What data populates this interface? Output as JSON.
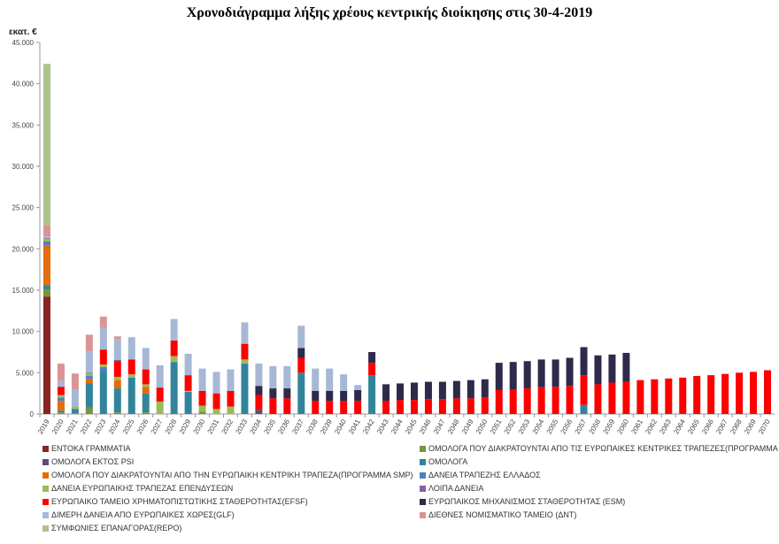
{
  "chart_data": {
    "type": "bar",
    "stacked": true,
    "title": "Χρονοδιάγραμμα λήξης χρέους κεντρικής διοίκησης στις 30-4-2019",
    "ylabel": "εκατ. €",
    "xlabel": "",
    "ylim": [
      0,
      45000
    ],
    "yticks": [
      "0",
      "5.000",
      "10.000",
      "15.000",
      "20.000",
      "25.000",
      "30.000",
      "35.000",
      "40.000",
      "45.000"
    ],
    "ytick_values": [
      0,
      5000,
      10000,
      15000,
      20000,
      25000,
      30000,
      35000,
      40000,
      45000
    ],
    "grid": false,
    "legend_position": "bottom",
    "year_start": 2019,
    "year_end": 2070,
    "series": [
      {
        "name": "ΕΝΤΟΚΑ ΓΡΑΜΜΑΤΙΑ",
        "color": "#8b2323",
        "values": {
          "2019": 14200
        }
      },
      {
        "name": "ΟΜΟΛΟΓΑ ΠΟΥ ΔΙΑΚΡΑΤΟΥΝΤΑΙ ΑΠΟ ΤΙΣ ΕΥΡΩΠΑΙΚΕΣ ΚΕΝΤΡΙΚΕΣ ΤΡΑΠΕΖΕΣ(ΠΡΟΓΡΑΜΜΑ ANFA)",
        "color": "#77933c",
        "values": {
          "2019": 900,
          "2020": 200,
          "2021": 100,
          "2022": 800,
          "2024": 200,
          "2026": 200,
          "2030": 300
        }
      },
      {
        "name": "ΟΜΟΛΟΓΑ ΕΚΤΟΣ PSI",
        "color": "#604a7b",
        "values": {
          "2034": 500
        }
      },
      {
        "name": "ΟΜΟΛΟΓΑ",
        "color": "#31849b",
        "values": {
          "2019": 500,
          "2020": 200,
          "2021": 500,
          "2022": 2900,
          "2023": 5200,
          "2024": 2900,
          "2025": 4400,
          "2026": 2300,
          "2028": 6300,
          "2029": 2700,
          "2033": 6100,
          "2037": 5000,
          "2042": 4700,
          "2057": 1100
        }
      },
      {
        "name": "ΟΜΟΛΟΓΑ ΠΟΥ ΔΙΑΚΡΑΤΟΥΝΤΑΙ ΑΠΟ ΤΗΝ ΕΥΡΩΠΑΙΚΗ ΚΕΝΤΡΙΚΗ ΤΡΑΠΕΖΑ(ΠΡΟΓΡΑΜΜΑ SMP)",
        "color": "#e46c0a",
        "values": {
          "2019": 4800,
          "2020": 1200,
          "2022": 500,
          "2024": 1000,
          "2026": 800
        }
      },
      {
        "name": "ΔΑΝΕΙΑ ΤΡΑΠΕΖΗΣ ΕΛΛΑΔΟΣ",
        "color": "#4f81bd",
        "values": {
          "2019": 500,
          "2020": 400,
          "2022": 400,
          "2023": 500
        }
      },
      {
        "name": "ΔΑΝΕΙΑ ΕΥΡΩΠΑΙΚΗΣ ΤΡΑΠΕΖΑΣ ΕΠΕΝΔΥΣΕΩΝ",
        "color": "#9bbb59",
        "values": {
          "2019": 300,
          "2020": 300,
          "2021": 300,
          "2022": 300,
          "2023": 300,
          "2024": 400,
          "2025": 400,
          "2026": 300,
          "2027": 1500,
          "2028": 700,
          "2029": 100,
          "2030": 700,
          "2031": 600,
          "2032": 900,
          "2033": 500
        }
      },
      {
        "name": "ΛΟΙΠΑ ΔΑΝΕΙΑ",
        "color": "#8064a2",
        "values": {
          "2019": 100,
          "2022": 100
        }
      },
      {
        "name": "ΕΥΡΩΠΑΙΚΟ ΤΑΜΕΙΟ ΧΡΗΜΑΤΟΠΙΣΤΩΤΙΚΗΣ ΣΤΑΘΕΡΟΤΗΤΑΣ(EFSF)",
        "color": "#ff0000",
        "values": {
          "2020": 1000,
          "2023": 1800,
          "2024": 1900,
          "2025": 1800,
          "2026": 1800,
          "2027": 1700,
          "2028": 1900,
          "2029": 1900,
          "2030": 1800,
          "2031": 1900,
          "2032": 1900,
          "2033": 1900,
          "2034": 1800,
          "2035": 1900,
          "2036": 1900,
          "2037": 1800,
          "2038": 1600,
          "2039": 1600,
          "2040": 1600,
          "2041": 1600,
          "2042": 1500,
          "2043": 1600,
          "2044": 1700,
          "2045": 1700,
          "2046": 1800,
          "2047": 1800,
          "2048": 1900,
          "2049": 1900,
          "2050": 2000,
          "2051": 2900,
          "2052": 3000,
          "2053": 3100,
          "2054": 3250,
          "2055": 3300,
          "2056": 3400,
          "2057": 3600,
          "2058": 3600,
          "2059": 3800,
          "2060": 3900,
          "2061": 4100,
          "2062": 4200,
          "2063": 4300,
          "2064": 4400,
          "2065": 4600,
          "2066": 4700,
          "2067": 4850,
          "2068": 5000,
          "2069": 5100,
          "2070": 5300
        }
      },
      {
        "name": "ΕΥΡΩΠΑΙΚΟΣ ΜΗΧΑΝΙΣΜΟΣ ΣΤΑΘΕΡΟΤΗΤΑΣ (ESM)",
        "color": "#2e2a4a",
        "values": {
          "2024": 100,
          "2034": 1100,
          "2035": 1200,
          "2036": 1200,
          "2037": 1200,
          "2038": 1200,
          "2039": 1200,
          "2040": 1200,
          "2041": 1300,
          "2042": 1300,
          "2043": 2000,
          "2044": 2000,
          "2045": 2100,
          "2046": 2100,
          "2047": 2100,
          "2048": 2100,
          "2049": 2200,
          "2050": 2200,
          "2051": 3300,
          "2052": 3300,
          "2053": 3300,
          "2054": 3350,
          "2055": 3300,
          "2056": 3400,
          "2057": 3400,
          "2058": 3500,
          "2059": 3400,
          "2060": 3500
        }
      },
      {
        "name": "ΔΙΜΕΡΗ ΔΑΝΕΙΑ ΑΠΟ ΕΥΡΩΠΑΙΚΕΣ ΧΩΡΕΣ(GLF)",
        "color": "#a6b8d6",
        "values": {
          "2019": 200,
          "2020": 700,
          "2021": 2100,
          "2022": 2600,
          "2023": 2700,
          "2024": 2600,
          "2025": 2700,
          "2026": 2600,
          "2027": 2700,
          "2028": 2600,
          "2029": 2600,
          "2030": 2700,
          "2031": 2600,
          "2032": 2600,
          "2033": 2600,
          "2034": 2700,
          "2035": 2700,
          "2036": 2700,
          "2037": 2700,
          "2038": 2700,
          "2039": 2700,
          "2040": 2000,
          "2041": 600
        }
      },
      {
        "name": "ΔΙΕΘΝΕΣ ΝΟΜΙΣΜΑΤΙΚΟ ΤΑΜΕΙΟ (ΔΝΤ)",
        "color": "#d99594",
        "values": {
          "2019": 1400,
          "2020": 2100,
          "2021": 1900,
          "2022": 2000,
          "2023": 1300,
          "2024": 300
        }
      },
      {
        "name": "ΣΥΜΦΩΝΙΕΣ ΕΠΑΝΑΓΟΡΑΣ(REPO)",
        "color": "#adc38a",
        "values": {
          "2019": 19500
        }
      }
    ]
  }
}
